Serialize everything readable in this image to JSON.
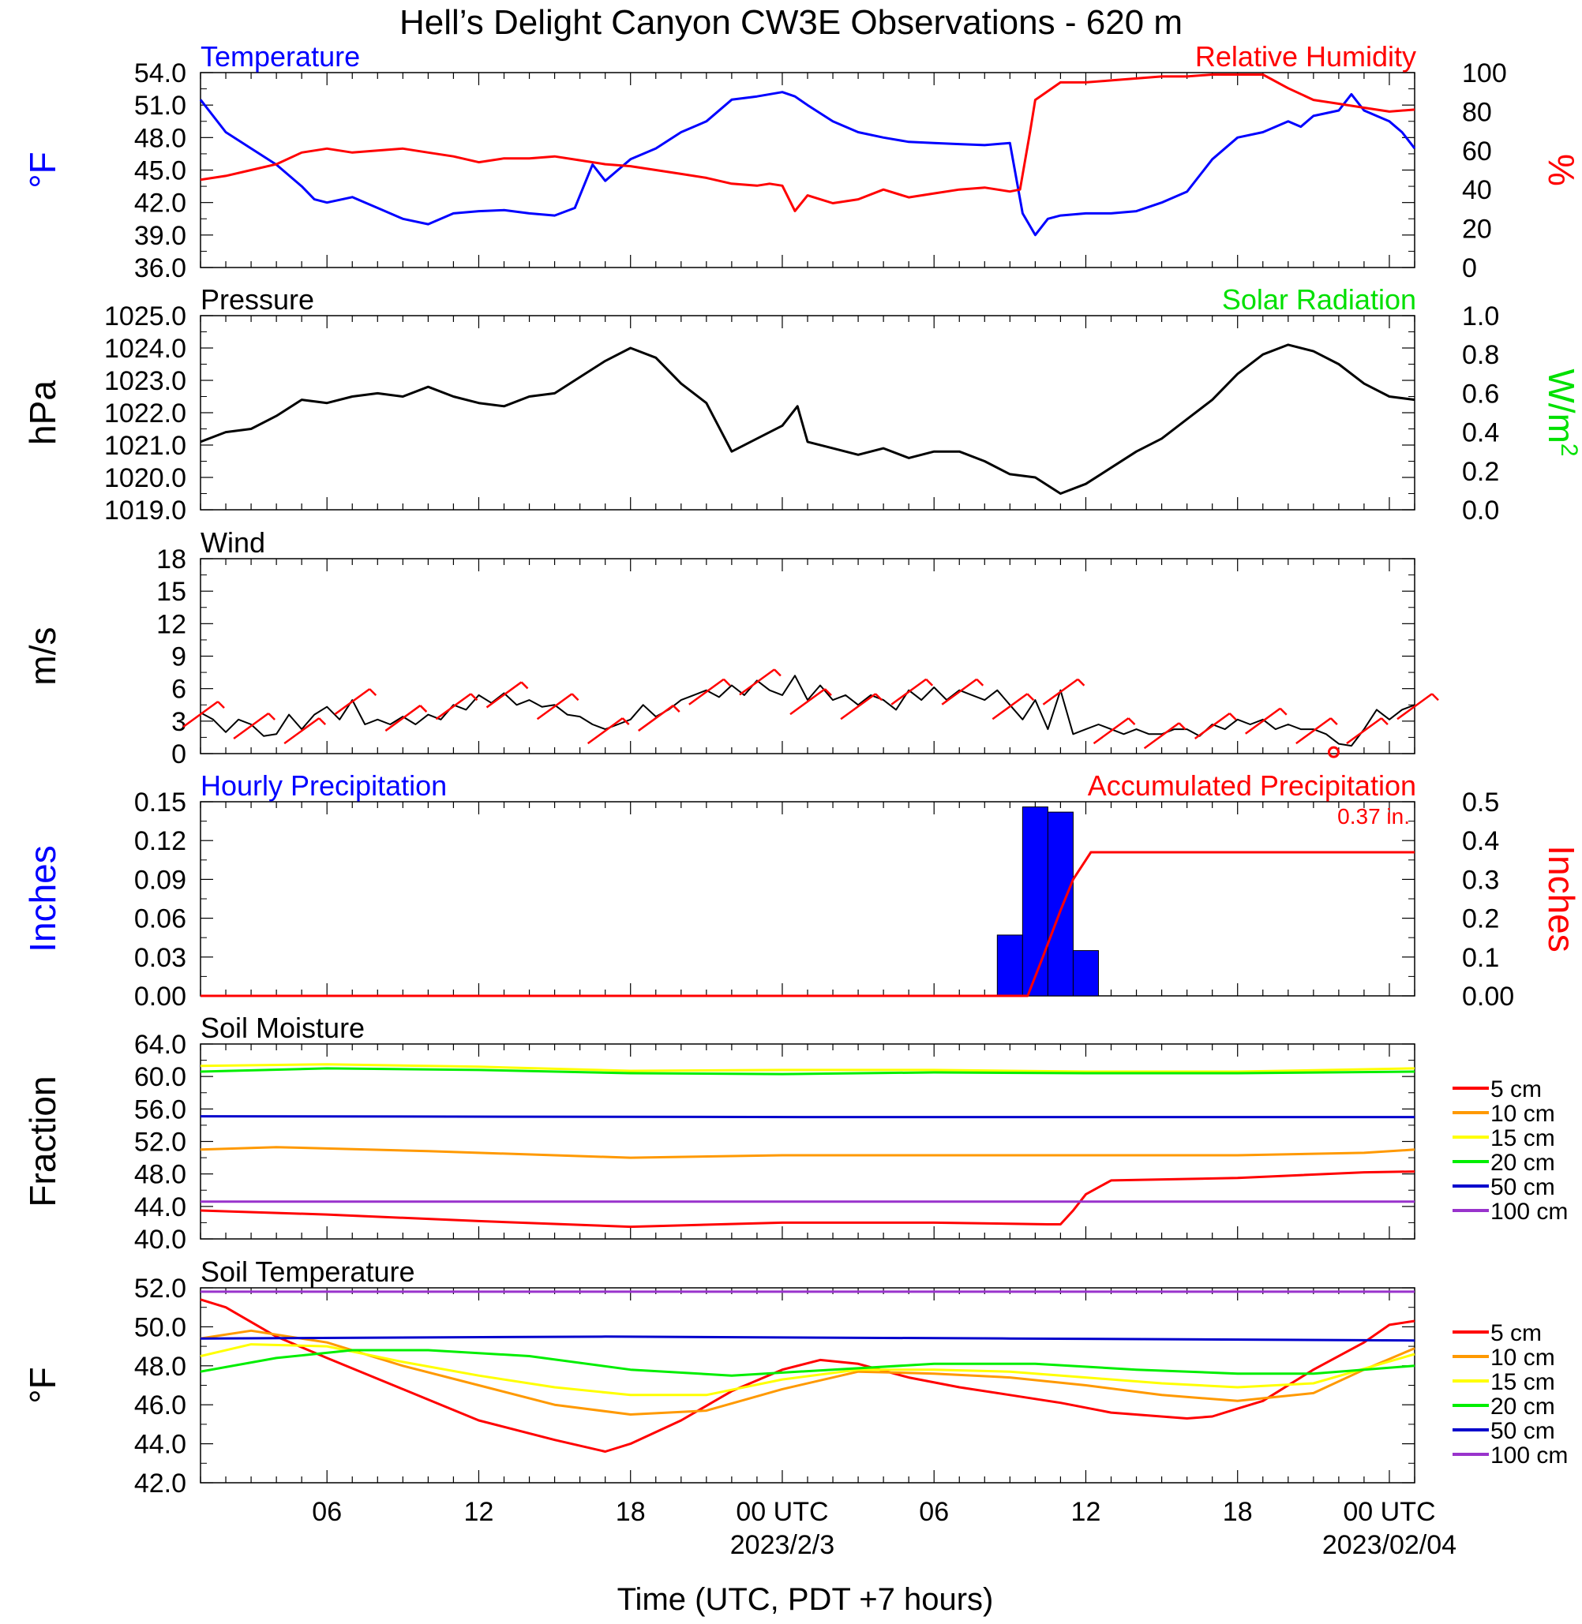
{
  "figure": {
    "title": "Hell’s Delight Canyon CW3E Observations - 620 m",
    "xlabel": "Time (UTC, PDT +7 hours)",
    "x_ticks": [
      "06",
      "12",
      "18",
      "00 UTC",
      "06",
      "12",
      "18",
      "00 UTC"
    ],
    "date_labels": [
      "2023/2/3",
      "2023/02/04"
    ],
    "x_range_utc_hours": [
      1,
      49
    ]
  },
  "colors": {
    "temperature": "#0000ff",
    "humidity": "#ff0000",
    "pressure": "#000000",
    "solar": "#00e000",
    "wind": "#000000",
    "barb": "#ff0000",
    "hourly_precip": "#0000ff",
    "accum_precip": "#ff0000",
    "d5": "#ff0000",
    "d10": "#ff9900",
    "d15": "#ffff00",
    "d20": "#00ee00",
    "d50": "#0000cc",
    "d100": "#9933cc"
  },
  "chart_data": [
    {
      "type": "line",
      "id": "temp_rh",
      "left_title": "Temperature",
      "right_title": "Relative Humidity",
      "ylabel_left": "°F",
      "ylabel_right": "%",
      "yticks_left": [
        "54.0",
        "51.0",
        "48.0",
        "45.0",
        "42.0",
        "39.0",
        "36.0"
      ],
      "yticks_right": [
        "100",
        "80",
        "60",
        "40",
        "20",
        "0"
      ],
      "ylim_left": [
        36,
        54
      ],
      "ylim_right": [
        0,
        100
      ],
      "series": [
        {
          "name": "Temperature",
          "axis": "left",
          "color_key": "temperature",
          "x": [
            1,
            2,
            3,
            4,
            5,
            5.5,
            6,
            7,
            8,
            9,
            10,
            11,
            12,
            13,
            14,
            15,
            15.8,
            16.5,
            17,
            17.5,
            18,
            19,
            20,
            21,
            22,
            23,
            24,
            24.5,
            25,
            26,
            27,
            28,
            29,
            30,
            31,
            32,
            33,
            33.5,
            34,
            34.5,
            35,
            36,
            37,
            38,
            39,
            40,
            41,
            42,
            43,
            44,
            44.5,
            45,
            46,
            46.5,
            47,
            47.5,
            48,
            48.5,
            49
          ],
          "y": [
            51.5,
            48.5,
            47,
            45.5,
            43.5,
            42.3,
            42,
            42.5,
            41.5,
            40.5,
            40,
            41,
            41.2,
            41.3,
            41,
            40.8,
            41.5,
            45.5,
            44,
            45,
            46,
            47,
            48.5,
            49.5,
            51.5,
            51.8,
            52.2,
            51.8,
            51,
            49.5,
            48.5,
            48,
            47.6,
            47.5,
            47.4,
            47.3,
            47.5,
            41,
            39,
            40.5,
            40.8,
            41,
            41,
            41.2,
            42,
            43,
            46,
            48,
            48.5,
            49.5,
            49,
            50,
            50.5,
            52,
            50.5,
            50,
            49.5,
            48.5,
            47
          ]
        },
        {
          "name": "Relative Humidity",
          "axis": "right",
          "color_key": "humidity",
          "x": [
            1,
            2,
            3,
            4,
            5,
            6,
            7,
            8,
            9,
            10,
            11,
            12,
            13,
            14,
            15,
            16,
            17,
            18,
            19,
            20,
            21,
            22,
            23,
            23.5,
            24,
            24.5,
            25,
            26,
            27,
            28,
            29,
            30,
            31,
            32,
            33,
            33.4,
            33.8,
            34,
            35,
            36,
            37,
            38,
            39,
            40,
            41,
            42,
            43,
            44,
            45,
            46,
            47,
            48,
            49
          ],
          "y": [
            45,
            47,
            50,
            53,
            59,
            61,
            59,
            60,
            61,
            59,
            57,
            54,
            56,
            56,
            57,
            55,
            53,
            52,
            50,
            48,
            46,
            43,
            42,
            43,
            42,
            29,
            37,
            33,
            35,
            40,
            36,
            38,
            40,
            41,
            39,
            40,
            70,
            86,
            95,
            95,
            96,
            97,
            98,
            98,
            99,
            99,
            99,
            92,
            86,
            84,
            82,
            80,
            81
          ]
        }
      ]
    },
    {
      "type": "line",
      "id": "pressure",
      "left_title": "Pressure",
      "right_title": "Solar Radiation",
      "ylabel_left": "hPa",
      "ylabel_right": "W/m",
      "ylabel_right_sup": "2",
      "yticks_left": [
        "1025.0",
        "1024.0",
        "1023.0",
        "1022.0",
        "1021.0",
        "1020.0",
        "1019.0"
      ],
      "yticks_right": [
        "1.0",
        "0.8",
        "0.6",
        "0.4",
        "0.2",
        "0.0"
      ],
      "ylim_left": [
        1019,
        1025
      ],
      "ylim_right": [
        0,
        1
      ],
      "series": [
        {
          "name": "Pressure",
          "axis": "left",
          "color_key": "pressure",
          "x": [
            1,
            2,
            3,
            4,
            5,
            6,
            7,
            8,
            9,
            10,
            11,
            12,
            13,
            14,
            15,
            16,
            17,
            18,
            19,
            20,
            21,
            22,
            23,
            24,
            24.6,
            25,
            26,
            27,
            28,
            29,
            30,
            31,
            32,
            33,
            34,
            35,
            36,
            37,
            38,
            39,
            40,
            41,
            42,
            43,
            44,
            45,
            46,
            47,
            48,
            49
          ],
          "y": [
            1021.1,
            1021.4,
            1021.5,
            1021.9,
            1022.4,
            1022.3,
            1022.5,
            1022.6,
            1022.5,
            1022.8,
            1022.5,
            1022.3,
            1022.2,
            1022.5,
            1022.6,
            1023.1,
            1023.6,
            1024.0,
            1023.7,
            1022.9,
            1022.3,
            1020.8,
            1021.2,
            1021.6,
            1022.2,
            1021.1,
            1020.9,
            1020.7,
            1020.9,
            1020.6,
            1020.8,
            1020.8,
            1020.5,
            1020.1,
            1020.0,
            1019.5,
            1019.8,
            1020.3,
            1020.8,
            1021.2,
            1021.8,
            1022.4,
            1023.2,
            1023.8,
            1024.1,
            1023.9,
            1023.5,
            1022.9,
            1022.5,
            1022.4
          ]
        }
      ]
    },
    {
      "type": "line",
      "id": "wind",
      "left_title": "Wind",
      "ylabel_left": "m/s",
      "yticks_left": [
        "18",
        "15",
        "12",
        "9",
        "6",
        "3",
        "0"
      ],
      "ylim_left": [
        0,
        20
      ],
      "series": [
        {
          "name": "Wind",
          "color_key": "wind",
          "x": [
            1,
            1.5,
            2,
            2.5,
            3,
            3.5,
            4,
            4.5,
            5,
            5.5,
            6,
            6.5,
            7,
            7.5,
            8,
            8.5,
            9,
            9.5,
            10,
            10.5,
            11,
            11.5,
            12,
            12.5,
            13,
            13.5,
            14,
            14.5,
            15,
            15.5,
            16,
            16.5,
            17,
            17.5,
            18,
            18.5,
            19,
            19.5,
            20,
            20.5,
            21,
            21.5,
            22,
            22.5,
            23,
            23.5,
            24,
            24.5,
            25,
            25.5,
            26,
            26.5,
            27,
            27.5,
            28,
            28.5,
            29,
            29.5,
            30,
            30.5,
            31,
            31.5,
            32,
            32.5,
            33,
            33.5,
            34,
            34.5,
            35,
            35.5,
            36,
            36.5,
            37,
            37.5,
            38,
            38.5,
            39,
            39.5,
            40,
            40.5,
            41,
            41.5,
            42,
            42.5,
            43,
            43.5,
            44,
            44.5,
            45,
            45.5,
            46,
            46.5,
            47,
            47.5,
            48,
            48.5,
            49
          ],
          "y": [
            4.2,
            3.5,
            2.2,
            3.5,
            3,
            1.8,
            2,
            4,
            2.5,
            4,
            4.8,
            3.5,
            5.5,
            3,
            3.5,
            3,
            3.8,
            3,
            4,
            3.5,
            5,
            4.5,
            6,
            5.2,
            6.2,
            5,
            5.5,
            4.8,
            5,
            4,
            3.8,
            3,
            2.5,
            3,
            3.5,
            5,
            3.8,
            4.5,
            5.5,
            6,
            6.5,
            5.8,
            7,
            6,
            7.5,
            6.5,
            6,
            8,
            5.5,
            7,
            5.5,
            6,
            5,
            6,
            5.5,
            4.5,
            6.5,
            5.5,
            6.8,
            5.5,
            6.5,
            6,
            5.5,
            6.5,
            5,
            3.5,
            5.5,
            2.5,
            6.5,
            2,
            2.5,
            3,
            2.5,
            2,
            2.5,
            2,
            2,
            2.5,
            2.5,
            1.8,
            3,
            2.5,
            3.5,
            3,
            3.5,
            2.5,
            3,
            2.5,
            2.5,
            2,
            1,
            0.8,
            2.5,
            4.5,
            3.5,
            4.5,
            5
          ]
        },
        {
          "name": "Wind barbs",
          "color_key": "barb",
          "note": "barb markers along the trace"
        }
      ]
    },
    {
      "type": "bar",
      "id": "precip",
      "left_title": "Hourly Precipitation",
      "right_title": "Accumulated Precipitation",
      "total_label": "0.37 in.",
      "ylabel_left": "Inches",
      "ylabel_right": "Inches",
      "yticks_left": [
        "0.15",
        "0.12",
        "0.09",
        "0.06",
        "0.03",
        "0.00"
      ],
      "yticks_right": [
        "0.5",
        "0.4",
        "0.3",
        "0.2",
        "0.1",
        "0.00"
      ],
      "ylim_left": [
        0,
        0.15
      ],
      "ylim_right": [
        0,
        0.5
      ],
      "series": [
        {
          "name": "Hourly Precipitation",
          "axis": "left",
          "color_key": "hourly_precip",
          "x": [
            33,
            34,
            35,
            36
          ],
          "values": [
            0.047,
            0.146,
            0.142,
            0.035
          ]
        },
        {
          "name": "Accumulated Precipitation",
          "axis": "right",
          "color_key": "accum_precip",
          "x": [
            1,
            33.7,
            34.3,
            35,
            35.5,
            36,
            36.2,
            49
          ],
          "y": [
            0,
            0,
            0.1,
            0.22,
            0.3,
            0.35,
            0.37,
            0.37
          ]
        }
      ]
    },
    {
      "type": "line",
      "id": "soil_moisture",
      "left_title": "Soil Moisture",
      "ylabel_left": "Fraction",
      "yticks_left": [
        "64.0",
        "60.0",
        "56.0",
        "52.0",
        "48.0",
        "44.0",
        "40.0"
      ],
      "ylim_left": [
        40,
        64
      ],
      "legend_placement": "right",
      "series": [
        {
          "name": "5 cm",
          "color_key": "d5",
          "x": [
            1,
            6,
            12,
            18,
            24,
            30,
            34.5,
            35,
            35.5,
            36,
            37,
            42,
            47,
            49
          ],
          "y": [
            43.5,
            43,
            42.2,
            41.5,
            42,
            42,
            41.8,
            41.8,
            43.5,
            45.5,
            47.2,
            47.5,
            48.2,
            48.3
          ]
        },
        {
          "name": "10 cm",
          "color_key": "d10",
          "x": [
            1,
            4,
            10,
            18,
            24,
            30,
            36,
            42,
            47,
            49
          ],
          "y": [
            51,
            51.3,
            50.8,
            50,
            50.3,
            50.3,
            50.3,
            50.3,
            50.6,
            51
          ]
        },
        {
          "name": "15 cm",
          "color_key": "d15",
          "x": [
            1,
            6,
            12,
            18,
            24,
            30,
            36,
            42,
            49
          ],
          "y": [
            61.3,
            61.5,
            61.2,
            60.7,
            60.8,
            60.8,
            60.6,
            60.6,
            61
          ]
        },
        {
          "name": "20 cm",
          "color_key": "d20",
          "x": [
            1,
            6,
            12,
            18,
            24,
            30,
            36,
            42,
            49
          ],
          "y": [
            60.6,
            61,
            60.8,
            60.4,
            60.3,
            60.5,
            60.4,
            60.4,
            60.6
          ]
        },
        {
          "name": "50 cm",
          "color_key": "d50",
          "x": [
            1,
            25,
            49
          ],
          "y": [
            55.1,
            55,
            55
          ]
        },
        {
          "name": "100 cm",
          "color_key": "d100",
          "x": [
            1,
            25,
            49
          ],
          "y": [
            44.6,
            44.6,
            44.6
          ]
        }
      ]
    },
    {
      "type": "line",
      "id": "soil_temp",
      "left_title": "Soil Temperature",
      "ylabel_left": "°F",
      "yticks_left": [
        "52.0",
        "50.0",
        "48.0",
        "46.0",
        "44.0",
        "42.0"
      ],
      "ylim_left": [
        42,
        52
      ],
      "legend_placement": "right",
      "series": [
        {
          "name": "5 cm",
          "color_key": "d5",
          "x": [
            1,
            2,
            4,
            6,
            9,
            12,
            15,
            17,
            18,
            20,
            22,
            24,
            25.5,
            27,
            29,
            31,
            33,
            35,
            37,
            40,
            41,
            42,
            43,
            45,
            47,
            48,
            49
          ],
          "y": [
            51.4,
            51,
            49.5,
            48.4,
            46.8,
            45.2,
            44.2,
            43.6,
            44,
            45.2,
            46.7,
            47.8,
            48.3,
            48.1,
            47.4,
            46.9,
            46.5,
            46.1,
            45.6,
            45.3,
            45.4,
            45.8,
            46.2,
            47.8,
            49.2,
            50.1,
            50.3
          ]
        },
        {
          "name": "10 cm",
          "color_key": "d10",
          "x": [
            1,
            3,
            6,
            9,
            12,
            15,
            18,
            21,
            24,
            27,
            30,
            33,
            36,
            39,
            42,
            45,
            47,
            49
          ],
          "y": [
            49.4,
            49.8,
            49.2,
            48,
            47,
            46,
            45.5,
            45.7,
            46.8,
            47.7,
            47.6,
            47.4,
            47,
            46.5,
            46.2,
            46.6,
            47.8,
            48.9
          ]
        },
        {
          "name": "15 cm",
          "color_key": "d15",
          "x": [
            1,
            3,
            6,
            9,
            12,
            15,
            18,
            21,
            24,
            27,
            30,
            33,
            36,
            39,
            42,
            45,
            49
          ],
          "y": [
            48.5,
            49.1,
            49,
            48.2,
            47.5,
            46.9,
            46.5,
            46.5,
            47.3,
            47.8,
            47.8,
            47.7,
            47.4,
            47.1,
            46.9,
            47.1,
            48.6
          ]
        },
        {
          "name": "20 cm",
          "color_key": "d20",
          "x": [
            1,
            4,
            7,
            10,
            14,
            18,
            22,
            26,
            30,
            34,
            38,
            42,
            45,
            49
          ],
          "y": [
            47.7,
            48.4,
            48.8,
            48.8,
            48.5,
            47.8,
            47.5,
            47.8,
            48.1,
            48.1,
            47.8,
            47.6,
            47.6,
            48
          ]
        },
        {
          "name": "50 cm",
          "color_key": "d50",
          "x": [
            1,
            17,
            33,
            49
          ],
          "y": [
            49.4,
            49.5,
            49.4,
            49.3
          ]
        },
        {
          "name": "100 cm",
          "color_key": "d100",
          "x": [
            1,
            25,
            49
          ],
          "y": [
            51.8,
            51.8,
            51.8
          ]
        }
      ]
    }
  ]
}
